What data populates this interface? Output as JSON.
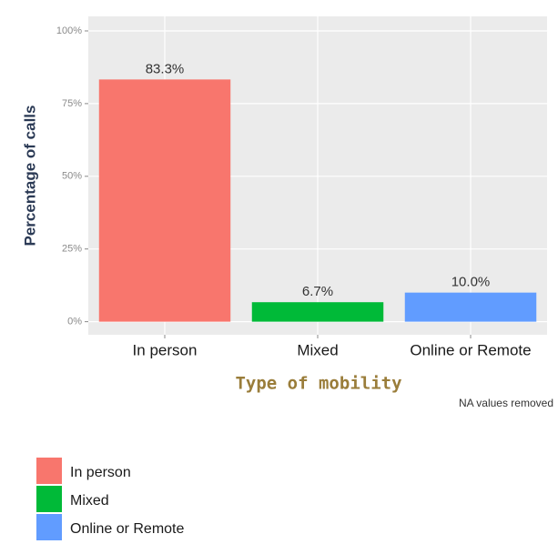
{
  "chart_data": {
    "type": "bar",
    "x_label": "Type of mobility",
    "y_label": "Percentage of calls",
    "annotation": "NA values removed",
    "categories": [
      "In person",
      "Mixed",
      "Online or Remote"
    ],
    "values": [
      83.3,
      6.7,
      10.0
    ],
    "value_labels": [
      "83.3%",
      "6.7%",
      "10.0%"
    ],
    "colors": [
      "#f8766d",
      "#00ba38",
      "#619cff"
    ],
    "ylim": [
      -4.5,
      105
    ],
    "yticks": [
      {
        "value": 0,
        "label": "0%"
      },
      {
        "value": 25,
        "label": "25%"
      },
      {
        "value": 50,
        "label": "50%"
      },
      {
        "value": 75,
        "label": "75%"
      },
      {
        "value": 100,
        "label": "100%"
      }
    ],
    "grid": true,
    "legend": "bottom-left"
  }
}
